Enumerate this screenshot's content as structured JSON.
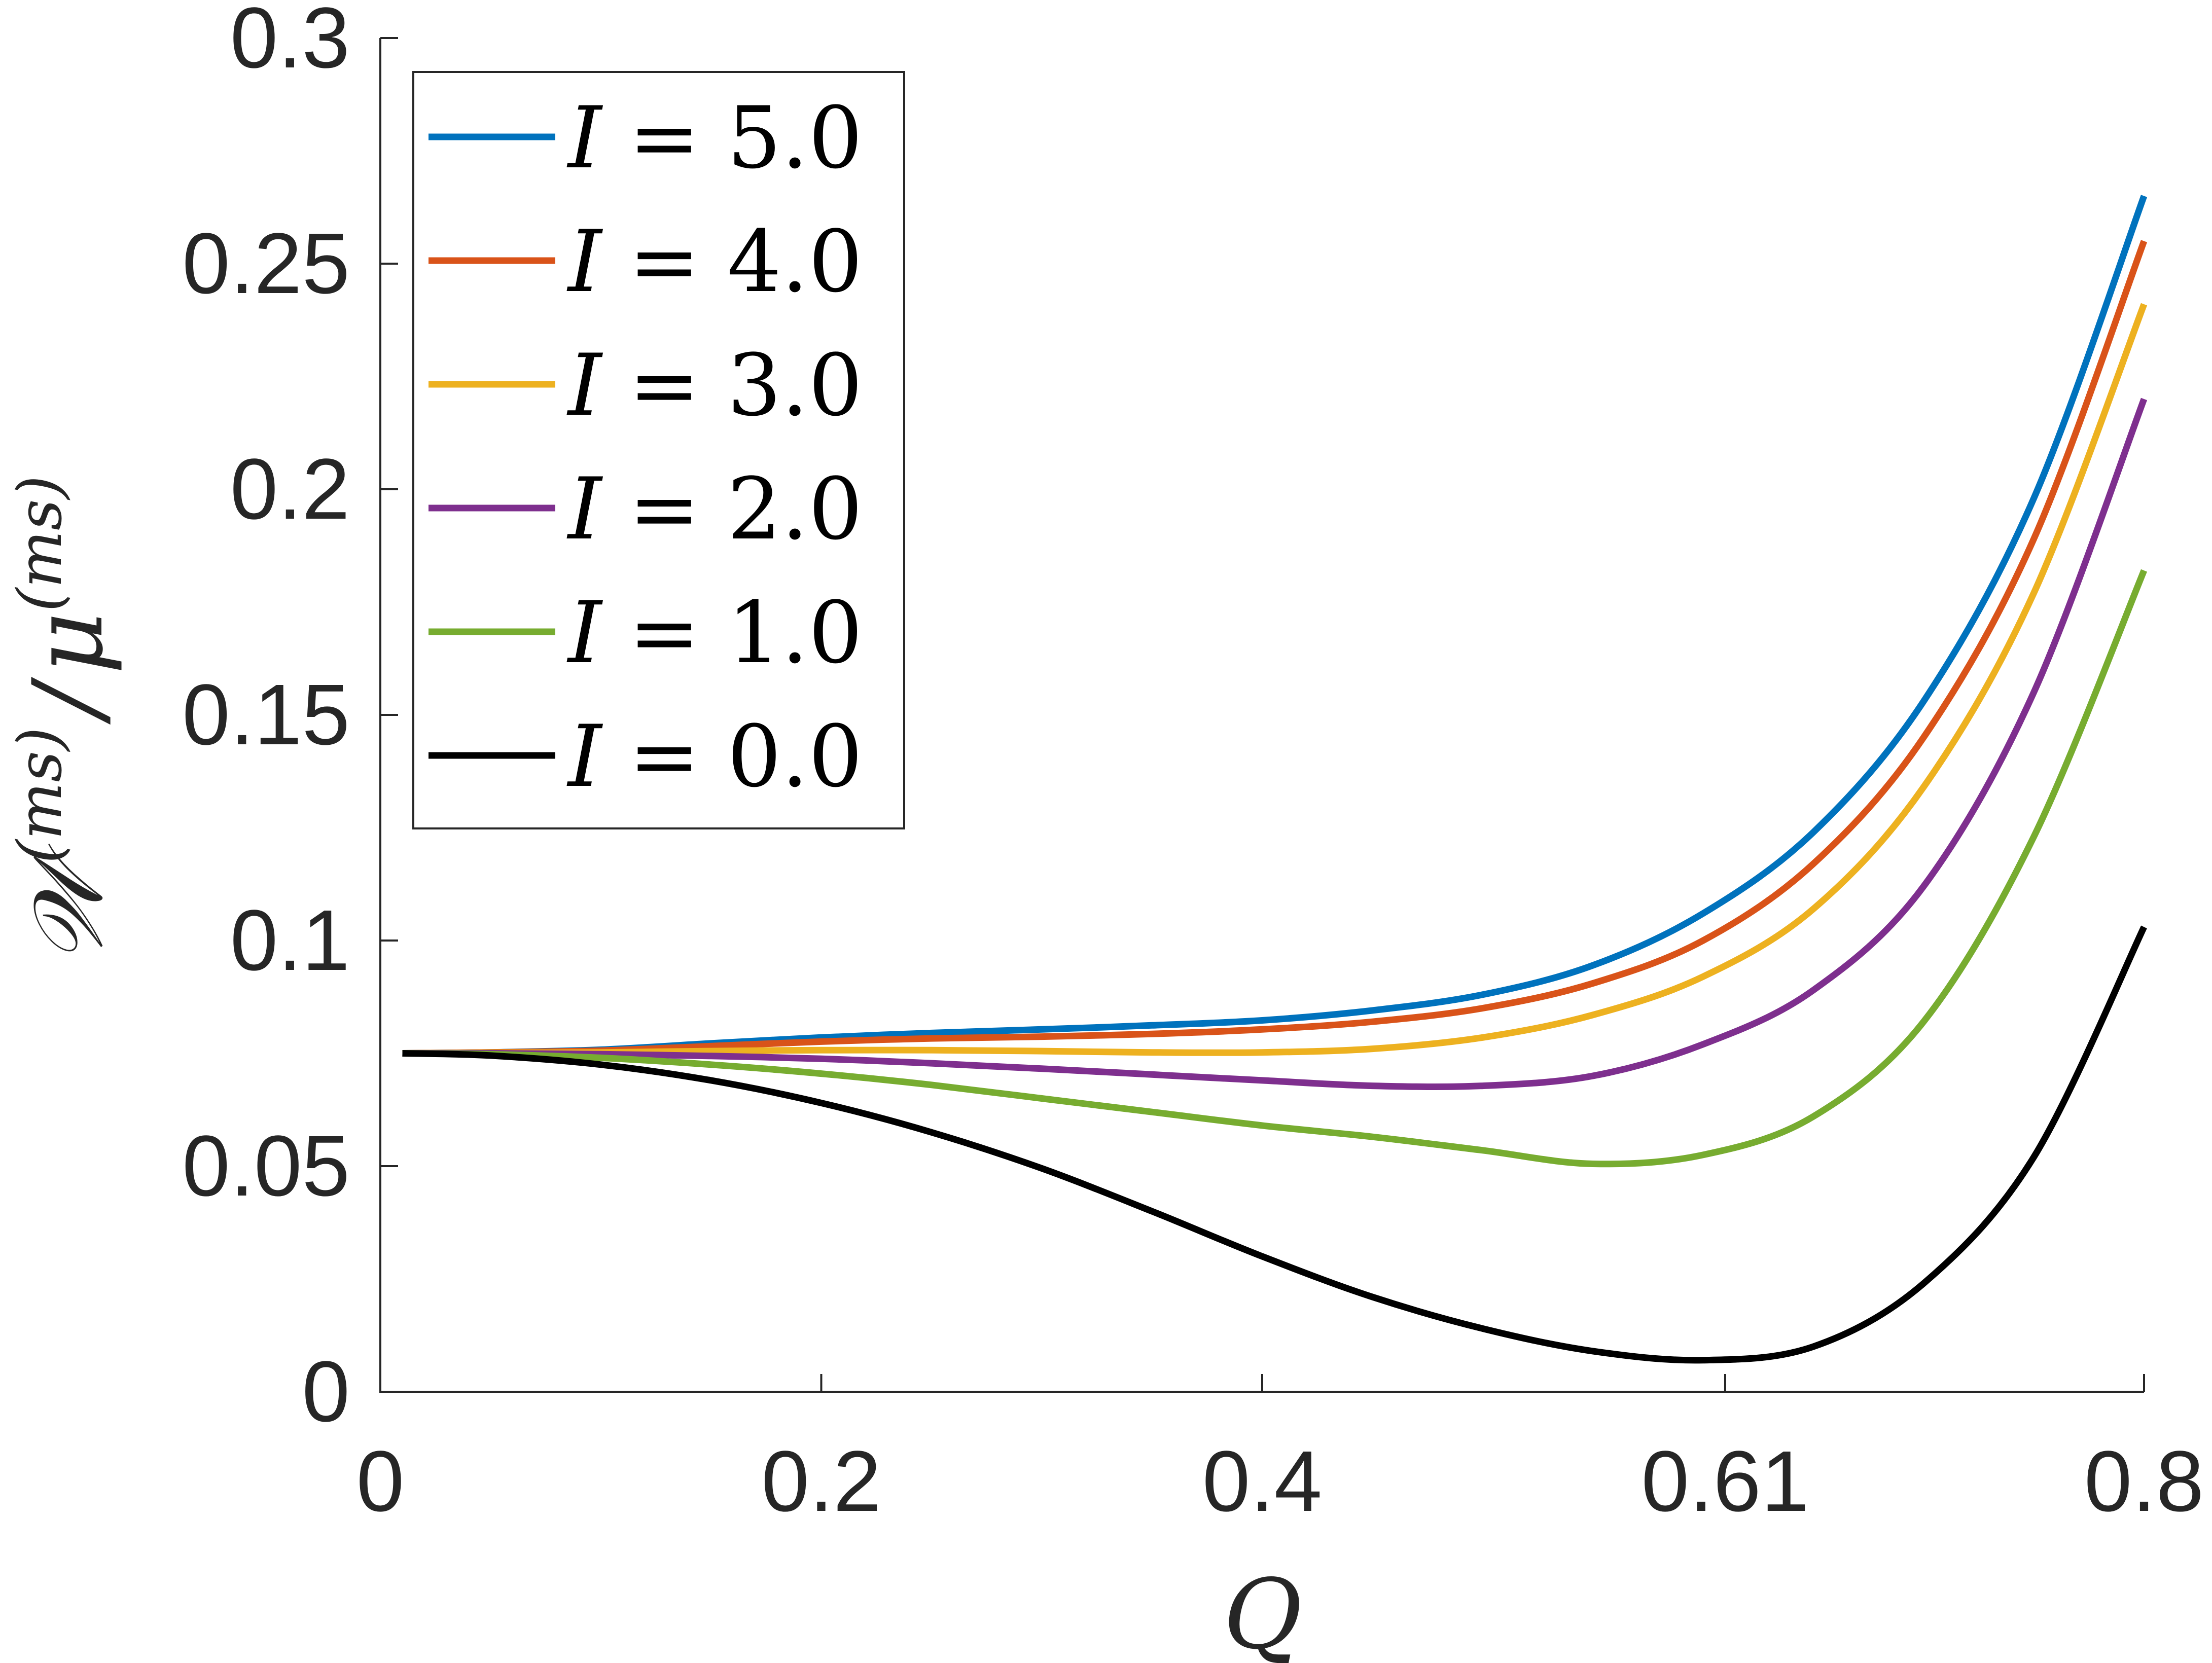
{
  "chart_data": {
    "type": "line",
    "xlabel": "Q",
    "ylabel": {
      "w": "𝒲",
      "w_sup": "(ms)",
      "slash": "/",
      "mu": "μ",
      "mu_sup": "(ms)"
    },
    "xlim": [
      0,
      0.8
    ],
    "ylim": [
      0,
      0.3
    ],
    "xticks": [
      0,
      0.2,
      0.4,
      0.61,
      0.8
    ],
    "xtick_labels": [
      "0",
      "0.2",
      "0.4",
      "0.61",
      "0.8"
    ],
    "yticks": [
      0,
      0.05,
      0.1,
      0.15,
      0.2,
      0.25,
      0.3
    ],
    "ytick_labels": [
      "0",
      "0.05",
      "0.1",
      "0.15",
      "0.2",
      "0.25",
      "0.3"
    ],
    "grid": false,
    "legend_position": "top-left",
    "x": [
      0.01,
      0.05,
      0.1,
      0.15,
      0.2,
      0.25,
      0.3,
      0.35,
      0.4,
      0.45,
      0.5,
      0.55,
      0.6,
      0.65,
      0.7,
      0.75,
      0.8
    ],
    "series": [
      {
        "name": "I = 5.0",
        "label_var": "I",
        "label_rest": " = 5.0",
        "color": "#0072BD",
        "values": [
          0.075,
          0.0752,
          0.0758,
          0.0772,
          0.0785,
          0.0795,
          0.0803,
          0.0812,
          0.0823,
          0.0845,
          0.088,
          0.0945,
          0.106,
          0.124,
          0.153,
          0.198,
          0.265
        ]
      },
      {
        "name": "I = 4.0",
        "label_var": "I",
        "label_rest": " = 4.0",
        "color": "#D95319",
        "values": [
          0.075,
          0.0752,
          0.0756,
          0.0766,
          0.0776,
          0.0783,
          0.0787,
          0.0793,
          0.0803,
          0.082,
          0.085,
          0.0905,
          0.1,
          0.117,
          0.145,
          0.189,
          0.255
        ]
      },
      {
        "name": "I = 3.0",
        "label_var": "I",
        "label_rest": " = 3.0",
        "color": "#EDB120",
        "values": [
          0.075,
          0.0751,
          0.0752,
          0.0755,
          0.0757,
          0.0757,
          0.0755,
          0.0752,
          0.0752,
          0.076,
          0.0785,
          0.0835,
          0.092,
          0.107,
          0.134,
          0.177,
          0.241
        ]
      },
      {
        "name": "I = 2.0",
        "label_var": "I",
        "label_rest": " = 2.0",
        "color": "#7E2F8E",
        "values": [
          0.075,
          0.075,
          0.0748,
          0.0744,
          0.0738,
          0.0728,
          0.0716,
          0.0703,
          0.069,
          0.0678,
          0.0678,
          0.07,
          0.077,
          0.089,
          0.112,
          0.155,
          0.22
        ]
      },
      {
        "name": "I = 1.0",
        "label_var": "I",
        "label_rest": " = 1.0",
        "color": "#77AC30",
        "values": [
          0.075,
          0.0748,
          0.074,
          0.0725,
          0.0705,
          0.068,
          0.065,
          0.062,
          0.059,
          0.0565,
          0.0535,
          0.0505,
          0.0525,
          0.061,
          0.082,
          0.123,
          0.182
        ]
      },
      {
        "name": "I = 0.0",
        "label_var": "I",
        "label_rest": " = 0.0",
        "color": "#000000",
        "values": [
          0.075,
          0.0745,
          0.0725,
          0.069,
          0.064,
          0.0575,
          0.0495,
          0.04,
          0.03,
          0.021,
          0.014,
          0.009,
          0.007,
          0.01,
          0.024,
          0.052,
          0.103
        ]
      }
    ]
  }
}
